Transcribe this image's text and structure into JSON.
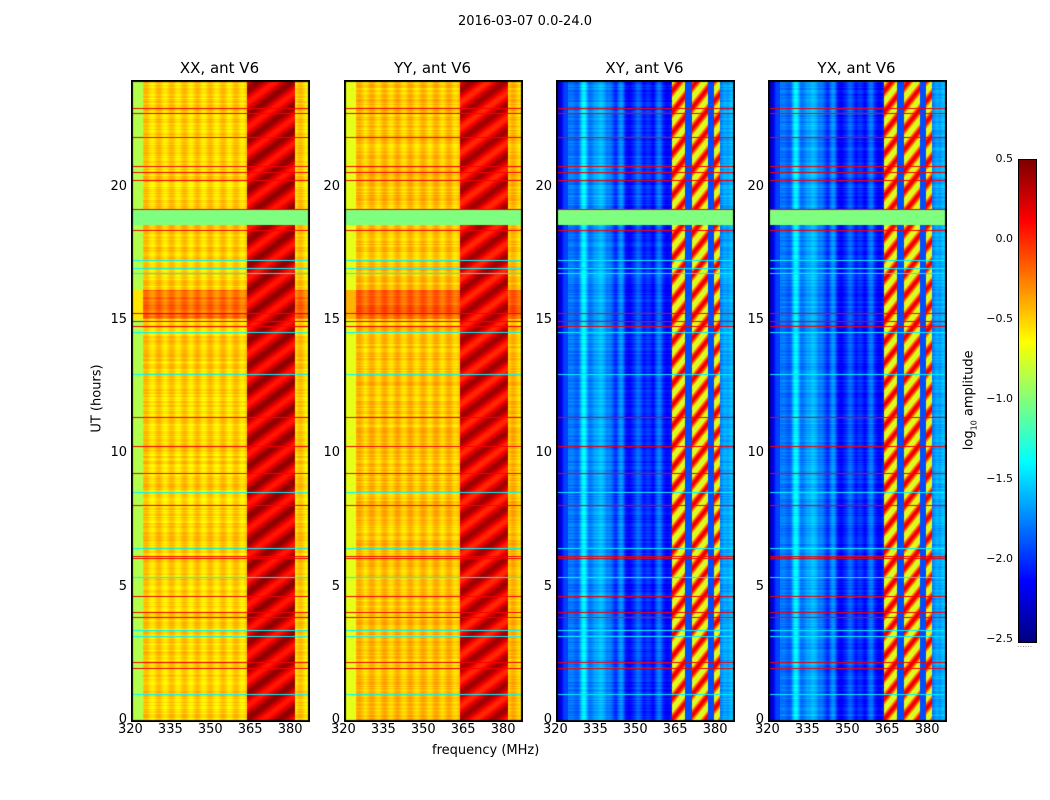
{
  "chart_data": {
    "type": "heatmap",
    "title": "2016-03-07 0.0-24.0",
    "xlabel": "frequency (MHz)",
    "ylabel": "UT (hours)",
    "xlim": [
      320,
      386.5
    ],
    "ylim": [
      0,
      24
    ],
    "xticks": [
      "320",
      "335",
      "350",
      "365",
      "380"
    ],
    "yticks": [
      "0",
      "5",
      "10",
      "15",
      "20"
    ],
    "colorbar": {
      "label": "log10 amplitude",
      "label_main": "log",
      "label_sub": "10",
      "label_tail": " amplitude",
      "range": [
        -2.5,
        0.5
      ],
      "ticks": [
        "0.5",
        "0.0",
        "−0.5",
        "−1.0",
        "−1.5",
        "−2.0",
        "−2.5"
      ],
      "colormap": "jet"
    },
    "panels": [
      {
        "title": "XX, ant V6",
        "baseline": -0.5,
        "edge": -0.85,
        "rfi": 0.25,
        "band_orange": true
      },
      {
        "title": "YY, ant V6",
        "baseline": -0.45,
        "edge": -0.7,
        "rfi": 0.2,
        "band_orange": true
      },
      {
        "title": "XY, ant V6",
        "baseline": -1.95,
        "edge": -2.2,
        "rfi": -0.3,
        "band_orange": false
      },
      {
        "title": "YX, ant V6",
        "baseline": -1.95,
        "edge": -2.2,
        "rfi": -0.3,
        "band_orange": false
      }
    ],
    "rfi_range_mhz": [
      363,
      381
    ],
    "flag_band_hours": [
      18.6,
      19.2
    ],
    "red_rows_hours": [
      23.0,
      22.8,
      21.9,
      20.8,
      20.6,
      20.3,
      19.2,
      18.4,
      15.3,
      15.0,
      14.8,
      11.4,
      10.3,
      9.3,
      8.1,
      6.2,
      6.1,
      4.7,
      4.1,
      3.9,
      2.2,
      2.0
    ],
    "cyan_rows_hours": [
      17.3,
      17.0,
      16.8,
      14.6,
      13.0,
      8.6,
      6.5,
      5.4,
      3.4,
      3.2,
      1.0
    ]
  }
}
